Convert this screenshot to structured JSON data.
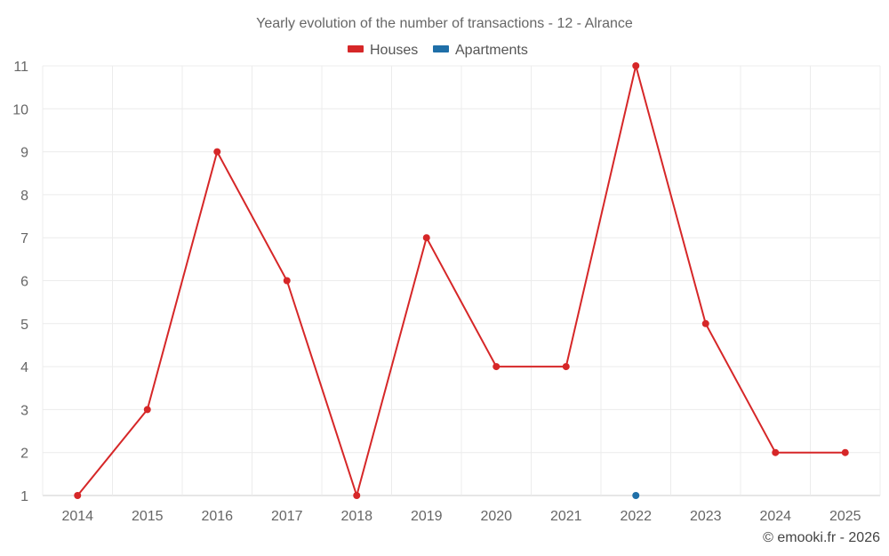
{
  "chart_data": {
    "type": "line",
    "title": "Yearly evolution of the number of transactions - 12 - Alrance",
    "categories": [
      "2014",
      "2015",
      "2016",
      "2017",
      "2018",
      "2019",
      "2020",
      "2021",
      "2022",
      "2023",
      "2024",
      "2025"
    ],
    "ylim": [
      1,
      11
    ],
    "yticks": [
      1,
      2,
      3,
      4,
      5,
      6,
      7,
      8,
      9,
      10,
      11
    ],
    "grid": true,
    "legend_position": "top-center",
    "series": [
      {
        "name": "Houses",
        "color": "#d62728",
        "values": [
          1,
          3,
          9,
          6,
          1,
          7,
          4,
          4,
          11,
          5,
          2,
          2
        ]
      },
      {
        "name": "Apartments",
        "color": "#1f6fa8",
        "values": [
          null,
          null,
          null,
          null,
          null,
          null,
          null,
          null,
          1,
          null,
          null,
          null
        ]
      }
    ],
    "xlabel": "",
    "ylabel": ""
  },
  "credit": "© emooki.fr - 2026"
}
